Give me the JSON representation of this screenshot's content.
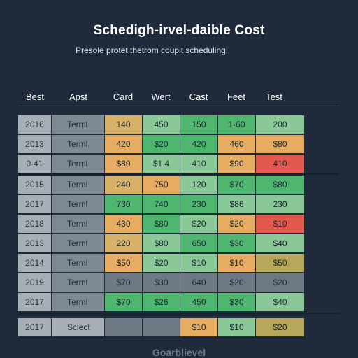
{
  "header": {
    "title": "Schedigh-irvel-daible Cost",
    "subtitle": "Presole protet thetrom coupit scheduling,"
  },
  "columns": [
    "Best",
    "Apst",
    "Card",
    "Wert",
    "Cast",
    "Feet",
    "Test"
  ],
  "rows": [
    {
      "year": "2016",
      "label": "Terml",
      "values": [
        "140",
        "450",
        "150",
        "1·60",
        "200"
      ]
    },
    {
      "year": "2013",
      "label": "Terml",
      "values": [
        "420",
        "$20",
        "420",
        "460",
        "$80"
      ]
    },
    {
      "year": "0·41",
      "label": "Terml",
      "values": [
        "$80",
        "$1.4",
        "410",
        "$90",
        "410"
      ]
    },
    {
      "year": "2015",
      "label": "Terml",
      "values": [
        "240",
        "750",
        "120",
        "$70",
        "$80"
      ]
    },
    {
      "year": "2017",
      "label": "Terml",
      "values": [
        "730",
        "740",
        "230",
        "$86",
        "230"
      ]
    },
    {
      "year": "2018",
      "label": "Terml",
      "values": [
        "430",
        "$80",
        "$20",
        "$20",
        "$10"
      ]
    },
    {
      "year": "2013",
      "label": "Terml",
      "values": [
        "220",
        "$80",
        "650",
        "$30",
        "$40"
      ]
    },
    {
      "year": "2014",
      "label": "Terml",
      "values": [
        "$50",
        "$20",
        "$10",
        "$10",
        "$50"
      ]
    },
    {
      "year": "2019",
      "label": "Terml",
      "values": [
        "$70",
        "$30",
        "640",
        "$20",
        "$20"
      ]
    },
    {
      "year": "2017",
      "label": "Terml",
      "values": [
        "$70",
        "$26",
        "450",
        "$30",
        "$40"
      ]
    }
  ],
  "summary": {
    "year": "2017",
    "label": "Sciect Nev",
    "values": [
      "",
      "",
      "$10",
      "$10",
      "$20"
    ]
  },
  "footer": {
    "text": "Goarblievel"
  },
  "colors": {
    "background": "#1f2b3a",
    "year_cell": "#a7aeb6",
    "label_cell": "#7f8993",
    "yellow": "#d8b169",
    "orange": "#e6ad62",
    "green": "#4fb66f",
    "light_green": "#8bc897",
    "gray": "#6e7985",
    "red": "#e2594d",
    "olive": "#b8a65a"
  }
}
